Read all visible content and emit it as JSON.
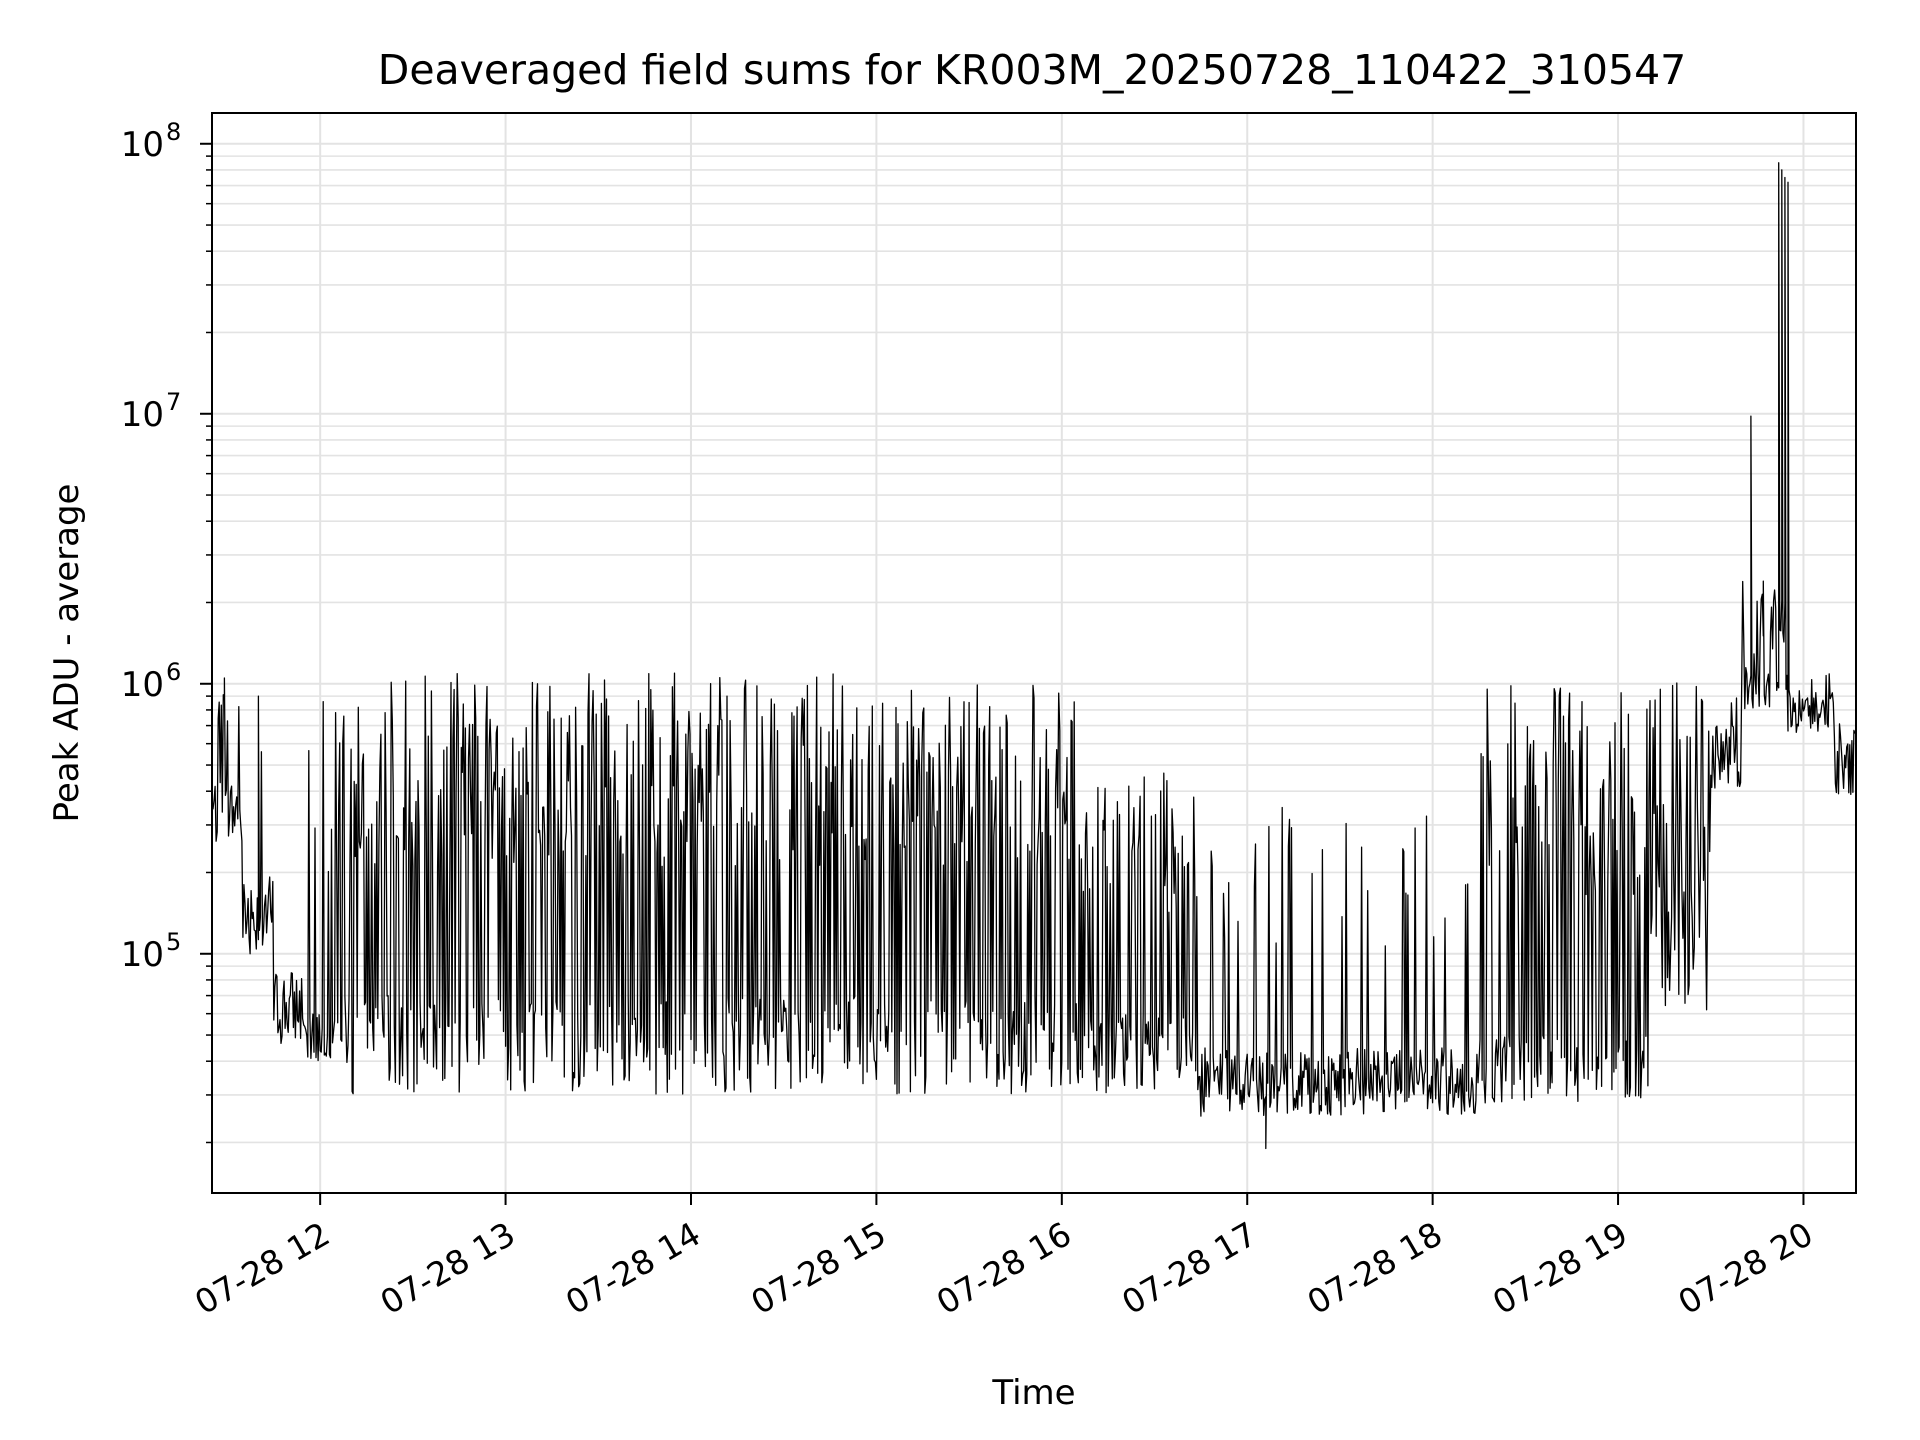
{
  "chart_data": {
    "type": "line",
    "title": "Deaveraged field sums for KR003M_20250728_110422_310547",
    "xlabel": "Time",
    "ylabel": "Peak ADU - average",
    "yscale": "log",
    "xlim": [
      "2025-07-28 11:25",
      "2025-07-28 20:17"
    ],
    "ylim": [
      13000,
      130000000
    ],
    "grid": true,
    "x_ticks": [
      {
        "value": "2025-07-28 12:00",
        "label": "07-28 12"
      },
      {
        "value": "2025-07-28 13:00",
        "label": "07-28 13"
      },
      {
        "value": "2025-07-28 14:00",
        "label": "07-28 14"
      },
      {
        "value": "2025-07-28 15:00",
        "label": "07-28 15"
      },
      {
        "value": "2025-07-28 16:00",
        "label": "07-28 16"
      },
      {
        "value": "2025-07-28 17:00",
        "label": "07-28 17"
      },
      {
        "value": "2025-07-28 18:00",
        "label": "07-28 18"
      },
      {
        "value": "2025-07-28 19:00",
        "label": "07-28 19"
      },
      {
        "value": "2025-07-28 20:00",
        "label": "07-28 20"
      }
    ],
    "y_ticks": [
      {
        "value": 100000,
        "base": "10",
        "exp": "5"
      },
      {
        "value": 1000000,
        "base": "10",
        "exp": "6"
      },
      {
        "value": 10000000,
        "base": "10",
        "exp": "7"
      },
      {
        "value": 100000000,
        "base": "10",
        "exp": "8"
      }
    ],
    "series_color": "#000000",
    "segments": [
      {
        "start": "2025-07-28 11:25",
        "end": "2025-07-28 11:35",
        "low": 250000,
        "high": 450000,
        "spike_rate": 0.1,
        "spike_high": 1000000
      },
      {
        "start": "2025-07-28 11:35",
        "end": "2025-07-28 11:45",
        "low": 100000,
        "high": 200000,
        "spike_rate": 0.05,
        "spike_high": 900000
      },
      {
        "start": "2025-07-28 11:45",
        "end": "2025-07-28 11:55",
        "low": 45000,
        "high": 90000,
        "spike_rate": 0.0,
        "spike_high": 0
      },
      {
        "start": "2025-07-28 11:55",
        "end": "2025-07-28 12:05",
        "low": 40000,
        "high": 65000,
        "spike_rate": 0.2,
        "spike_high": 1100000
      },
      {
        "start": "2025-07-28 12:05",
        "end": "2025-07-28 16:05",
        "low": 30000,
        "high": 70000,
        "spike_rate": 0.55,
        "spike_high": 1100000
      },
      {
        "start": "2025-07-28 16:05",
        "end": "2025-07-28 16:45",
        "low": 30000,
        "high": 60000,
        "spike_rate": 0.35,
        "spike_high": 500000
      },
      {
        "start": "2025-07-28 16:45",
        "end": "2025-07-28 18:15",
        "low": 25000,
        "high": 45000,
        "spike_rate": 0.12,
        "spike_high": 350000
      },
      {
        "start": "2025-07-28 18:15",
        "end": "2025-07-28 19:10",
        "low": 28000,
        "high": 50000,
        "spike_rate": 0.45,
        "spike_high": 1000000
      },
      {
        "start": "2025-07-28 19:10",
        "end": "2025-07-28 19:30",
        "low": 60000,
        "high": 400000,
        "spike_rate": 0.2,
        "spike_high": 1200000
      },
      {
        "start": "2025-07-28 19:30",
        "end": "2025-07-28 19:40",
        "low": 400000,
        "high": 700000,
        "spike_rate": 0.1,
        "spike_high": 900000
      },
      {
        "start": "2025-07-28 19:40",
        "end": "2025-07-28 19:55",
        "low": 800000,
        "high": 1600000,
        "spike_rate": 0.15,
        "spike_high": 2400000
      },
      {
        "start": "2025-07-28 19:55",
        "end": "2025-07-28 20:10",
        "low": 650000,
        "high": 950000,
        "spike_rate": 0.05,
        "spike_high": 1100000
      },
      {
        "start": "2025-07-28 20:10",
        "end": "2025-07-28 20:17",
        "low": 380000,
        "high": 750000,
        "spike_rate": 0.05,
        "spike_high": 900000
      }
    ],
    "peaks": [
      {
        "x": "2025-07-28 11:29",
        "y": 1050000
      },
      {
        "x": "2025-07-28 11:40",
        "y": 900000
      },
      {
        "x": "2025-07-28 11:41",
        "y": 560000
      },
      {
        "x": "2025-07-28 19:43",
        "y": 9800000
      },
      {
        "x": "2025-07-28 19:47",
        "y": 2400000
      },
      {
        "x": "2025-07-28 19:52",
        "y": 85000000
      },
      {
        "x": "2025-07-28 19:53",
        "y": 80000000
      },
      {
        "x": "2025-07-28 19:54",
        "y": 75000000
      },
      {
        "x": "2025-07-28 19:55",
        "y": 72000000
      },
      {
        "x": "2025-07-28 17:06",
        "y": 19000
      }
    ]
  }
}
